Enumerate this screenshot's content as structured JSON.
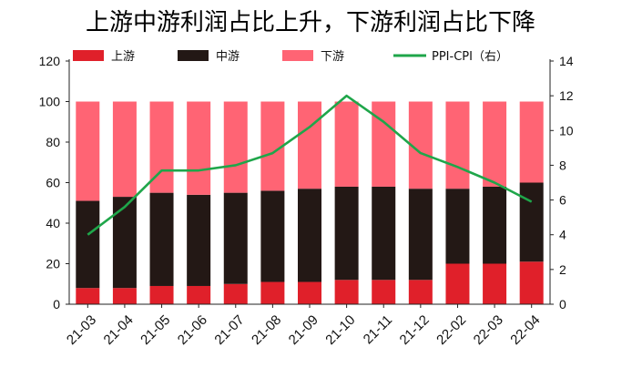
{
  "title": "上游中游利润占比上升，下游利润占比下降",
  "chart_data": {
    "type": "bar",
    "stacked": true,
    "categories": [
      "21-03",
      "21-04",
      "21-05",
      "21-06",
      "21-07",
      "21-08",
      "21-09",
      "21-10",
      "21-11",
      "21-12",
      "22-02",
      "22-03",
      "22-04"
    ],
    "series": [
      {
        "name": "上游",
        "color": "#e0202a",
        "axis": "left",
        "values": [
          8,
          8,
          9,
          9,
          10,
          11,
          11,
          12,
          12,
          12,
          20,
          20,
          21
        ]
      },
      {
        "name": "中游",
        "color": "#231815",
        "axis": "left",
        "values": [
          43,
          45,
          46,
          45,
          45,
          45,
          46,
          46,
          46,
          45,
          37,
          38,
          39
        ]
      },
      {
        "name": "下游",
        "color": "#ff6474",
        "axis": "left",
        "values": [
          49,
          47,
          45,
          46,
          45,
          44,
          43,
          42,
          42,
          43,
          43,
          42,
          40
        ]
      },
      {
        "name": "PPI-CPI（右）",
        "type": "line",
        "color": "#1fa64a",
        "axis": "right",
        "values": [
          4.0,
          5.6,
          7.7,
          7.7,
          8.0,
          8.7,
          10.2,
          12.0,
          10.5,
          8.7,
          7.9,
          7.0,
          5.9
        ]
      }
    ],
    "ylim": [
      0,
      120
    ],
    "yticks": [
      0,
      20,
      40,
      60,
      80,
      100,
      120
    ],
    "y2lim": [
      0,
      14
    ],
    "y2ticks": [
      0,
      2,
      4,
      6,
      8,
      10,
      12,
      14
    ],
    "legend": "top",
    "grid": false
  }
}
